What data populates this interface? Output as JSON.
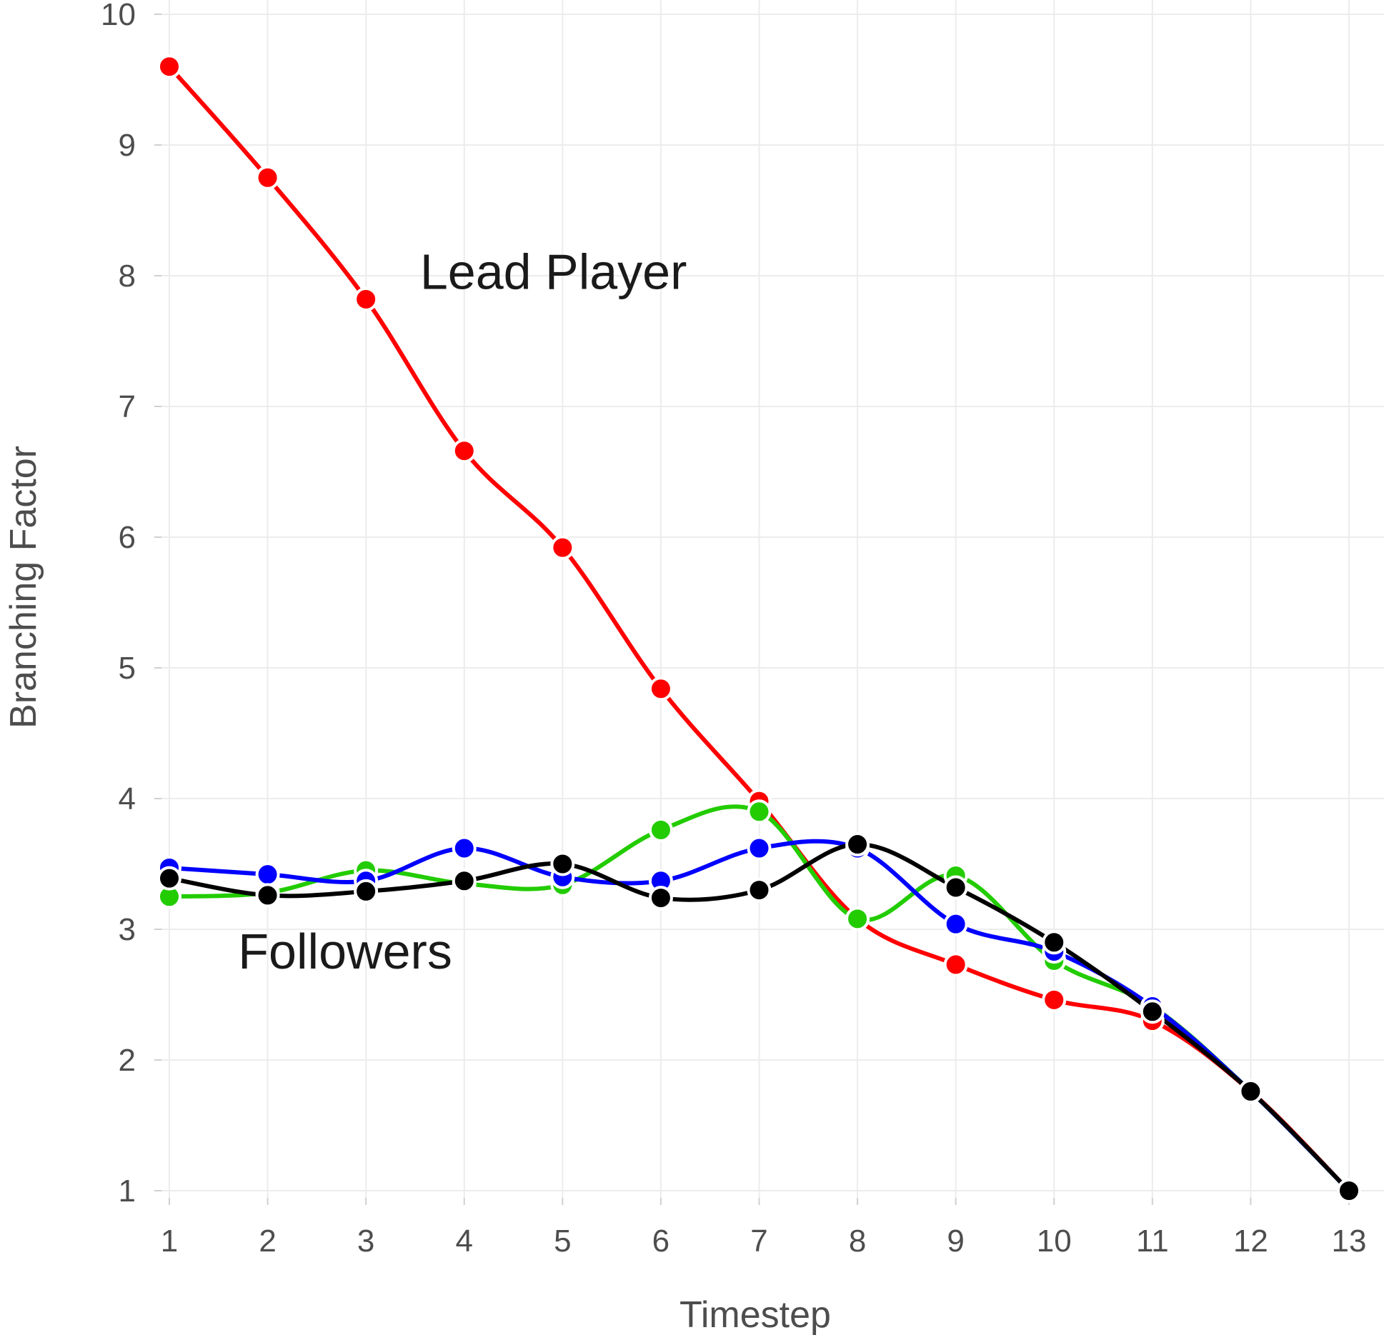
{
  "chart_data": {
    "type": "line",
    "xlabel": "Timestep",
    "ylabel": "Branching Factor",
    "x": [
      1,
      2,
      3,
      4,
      5,
      6,
      7,
      8,
      9,
      10,
      11,
      12,
      13
    ],
    "xlim": [
      1,
      13
    ],
    "ylim": [
      1,
      10
    ],
    "xticks": [
      1,
      2,
      3,
      4,
      5,
      6,
      7,
      8,
      9,
      10,
      11,
      12,
      13
    ],
    "yticks": [
      1,
      2,
      3,
      4,
      5,
      6,
      7,
      8,
      9,
      10
    ],
    "grid": true,
    "smoothed": true,
    "series": [
      {
        "color": "#ff0000",
        "values": [
          9.6,
          8.75,
          7.82,
          6.66,
          5.92,
          4.84,
          3.98,
          3.08,
          2.73,
          2.46,
          2.3,
          1.76,
          1.0
        ]
      },
      {
        "color": "#22cc00",
        "values": [
          3.25,
          3.28,
          3.45,
          3.35,
          3.34,
          3.76,
          3.9,
          3.08,
          3.41,
          2.76,
          2.41,
          1.76,
          1.0
        ]
      },
      {
        "color": "#0000ff",
        "values": [
          3.47,
          3.42,
          3.37,
          3.62,
          3.4,
          3.37,
          3.62,
          3.62,
          3.04,
          2.83,
          2.41,
          1.76,
          1.0
        ]
      },
      {
        "color": "#000000",
        "values": [
          3.39,
          3.26,
          3.29,
          3.37,
          3.5,
          3.24,
          3.3,
          3.65,
          3.32,
          2.9,
          2.37,
          1.76,
          1.0
        ]
      }
    ],
    "annotations": [
      {
        "text": "Lead Player",
        "x": 3.55,
        "y": 7.9
      },
      {
        "text": "Followers",
        "x": 1.7,
        "y": 2.7
      }
    ]
  }
}
